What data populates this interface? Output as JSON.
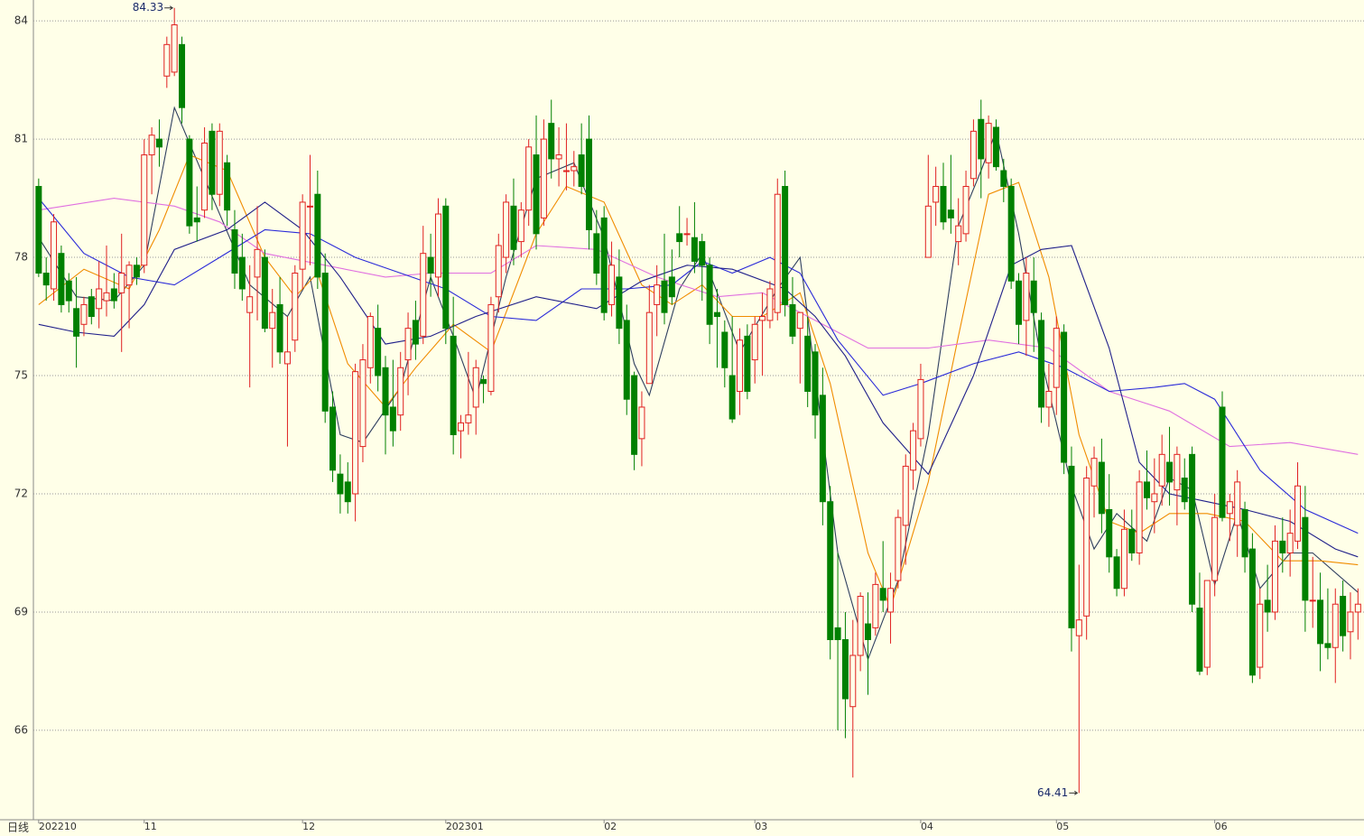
{
  "chart_data": {
    "type": "candlestick",
    "period": "日线",
    "up_color": "#e02020",
    "down_color": "#008000",
    "grid": true,
    "ylim": [
      63.73,
      84.53
    ],
    "yticks": [
      66,
      69,
      72,
      75,
      78,
      81,
      84
    ],
    "xlim": [
      -0.7,
      175.8
    ],
    "xticks": [
      {
        "value": 0,
        "label": "202210"
      },
      {
        "value": 14,
        "label": "11"
      },
      {
        "value": 35,
        "label": "12"
      },
      {
        "value": 54,
        "label": "202301"
      },
      {
        "value": 75,
        "label": "02"
      },
      {
        "value": 95,
        "label": "03"
      },
      {
        "value": 117,
        "label": "04"
      },
      {
        "value": 135,
        "label": "05"
      },
      {
        "value": 156,
        "label": "06"
      }
    ],
    "ohlc": [
      [
        79.8,
        80.0,
        77.5,
        77.6
      ],
      [
        77.6,
        78.0,
        76.9,
        77.3
      ],
      [
        77.2,
        79.1,
        76.9,
        78.9
      ],
      [
        78.1,
        78.3,
        76.6,
        76.8
      ],
      [
        77.4,
        77.6,
        76.6,
        76.9
      ],
      [
        76.7,
        77.5,
        75.2,
        76.0
      ],
      [
        76.3,
        77.0,
        76.0,
        76.8
      ],
      [
        77.0,
        77.2,
        76.3,
        76.5
      ],
      [
        76.7,
        77.9,
        76.2,
        77.2
      ],
      [
        76.9,
        78.3,
        76.5,
        77.1
      ],
      [
        77.2,
        77.6,
        76.7,
        76.9
      ],
      [
        77.1,
        78.6,
        75.6,
        77.6
      ],
      [
        77.3,
        77.9,
        76.2,
        77.8
      ],
      [
        77.8,
        78.0,
        77.3,
        77.5
      ],
      [
        77.8,
        81.0,
        77.6,
        80.6
      ],
      [
        80.6,
        81.3,
        79.6,
        81.1
      ],
      [
        81.0,
        81.5,
        80.3,
        80.8
      ],
      [
        82.6,
        83.6,
        82.3,
        83.4
      ],
      [
        82.7,
        84.33,
        82.6,
        83.9
      ],
      [
        83.4,
        83.6,
        81.4,
        81.8
      ],
      [
        81.0,
        81.1,
        78.6,
        78.8
      ],
      [
        79.0,
        79.8,
        78.4,
        78.9
      ],
      [
        79.2,
        81.3,
        79.0,
        80.9
      ],
      [
        81.2,
        81.4,
        79.2,
        79.6
      ],
      [
        79.6,
        81.4,
        79.3,
        81.2
      ],
      [
        80.4,
        80.6,
        78.8,
        79.2
      ],
      [
        78.7,
        79.2,
        77.2,
        77.6
      ],
      [
        78.0,
        78.6,
        76.9,
        77.2
      ],
      [
        76.6,
        77.8,
        74.7,
        77.0
      ],
      [
        77.5,
        79.3,
        76.4,
        78.2
      ],
      [
        78.0,
        78.2,
        76.1,
        76.2
      ],
      [
        76.2,
        77.2,
        75.2,
        76.6
      ],
      [
        76.8,
        77.5,
        75.3,
        75.6
      ],
      [
        75.3,
        76.5,
        73.2,
        75.6
      ],
      [
        75.9,
        77.8,
        75.6,
        77.6
      ],
      [
        77.7,
        79.6,
        77.2,
        79.4
      ],
      [
        79.3,
        80.6,
        77.8,
        79.3
      ],
      [
        79.6,
        80.2,
        77.2,
        77.5
      ],
      [
        77.6,
        78.1,
        73.8,
        74.1
      ],
      [
        74.2,
        74.6,
        72.3,
        72.6
      ],
      [
        72.5,
        73.0,
        71.5,
        72.0
      ],
      [
        72.3,
        72.8,
        71.5,
        71.8
      ],
      [
        72.0,
        75.3,
        71.3,
        75.1
      ],
      [
        73.2,
        75.8,
        72.8,
        75.4
      ],
      [
        75.2,
        76.6,
        74.8,
        76.5
      ],
      [
        76.2,
        76.8,
        74.6,
        75.0
      ],
      [
        75.2,
        75.5,
        73.0,
        74.0
      ],
      [
        74.2,
        75.4,
        73.2,
        73.6
      ],
      [
        74.0,
        75.6,
        73.6,
        75.2
      ],
      [
        75.4,
        76.6,
        74.5,
        76.2
      ],
      [
        76.4,
        76.9,
        75.4,
        75.8
      ],
      [
        76.0,
        78.8,
        75.8,
        78.1
      ],
      [
        78.0,
        78.6,
        77.0,
        77.6
      ],
      [
        77.5,
        79.5,
        77.0,
        79.1
      ],
      [
        79.3,
        79.5,
        75.8,
        76.2
      ],
      [
        76.0,
        77.0,
        73.0,
        73.5
      ],
      [
        73.6,
        74.0,
        72.9,
        73.8
      ],
      [
        73.8,
        75.6,
        73.5,
        74.0
      ],
      [
        74.2,
        75.4,
        73.5,
        75.2
      ],
      [
        74.9,
        75.0,
        74.3,
        74.8
      ],
      [
        74.6,
        77.0,
        74.5,
        76.8
      ],
      [
        77.0,
        78.6,
        76.6,
        78.3
      ],
      [
        78.0,
        79.6,
        77.6,
        79.4
      ],
      [
        79.3,
        80.0,
        77.8,
        78.2
      ],
      [
        78.4,
        79.4,
        78.0,
        79.2
      ],
      [
        79.2,
        81.0,
        78.8,
        80.8
      ],
      [
        80.6,
        81.6,
        78.2,
        78.6
      ],
      [
        79.0,
        81.5,
        78.8,
        81.0
      ],
      [
        81.4,
        82.0,
        80.0,
        80.5
      ],
      [
        80.5,
        81.3,
        79.8,
        80.6
      ],
      [
        80.2,
        81.4,
        79.7,
        80.2
      ],
      [
        80.2,
        80.7,
        79.8,
        80.3
      ],
      [
        80.6,
        81.4,
        79.6,
        79.8
      ],
      [
        81.0,
        81.6,
        78.2,
        78.7
      ],
      [
        78.6,
        79.2,
        77.3,
        77.6
      ],
      [
        79.0,
        79.3,
        76.4,
        76.6
      ],
      [
        76.8,
        78.4,
        76.5,
        77.8
      ],
      [
        77.5,
        78.2,
        75.8,
        76.2
      ],
      [
        76.4,
        76.8,
        74.0,
        74.4
      ],
      [
        75.0,
        75.1,
        72.6,
        73.0
      ],
      [
        73.4,
        74.6,
        72.7,
        74.2
      ],
      [
        74.8,
        77.3,
        74.8,
        76.6
      ],
      [
        76.8,
        77.8,
        76.0,
        77.3
      ],
      [
        77.4,
        78.6,
        76.3,
        76.6
      ],
      [
        77.5,
        78.2,
        76.8,
        77.0
      ],
      [
        78.6,
        79.3,
        78.0,
        78.4
      ],
      [
        78.6,
        79.0,
        78.3,
        78.6
      ],
      [
        78.5,
        79.4,
        77.6,
        77.9
      ],
      [
        78.4,
        78.6,
        76.9,
        77.8
      ],
      [
        77.8,
        78.0,
        75.8,
        76.3
      ],
      [
        76.6,
        77.2,
        75.2,
        76.5
      ],
      [
        76.1,
        76.4,
        74.7,
        75.2
      ],
      [
        75.0,
        76.5,
        73.8,
        73.9
      ],
      [
        74.6,
        76.2,
        74.0,
        75.9
      ],
      [
        76.0,
        76.3,
        74.4,
        74.6
      ],
      [
        75.4,
        76.5,
        74.8,
        76.3
      ],
      [
        76.4,
        77.1,
        75.0,
        76.5
      ],
      [
        76.4,
        77.4,
        76.2,
        77.2
      ],
      [
        76.6,
        80.0,
        76.4,
        79.6
      ],
      [
        79.8,
        80.2,
        76.5,
        76.8
      ],
      [
        76.8,
        77.5,
        75.8,
        76.0
      ],
      [
        76.2,
        76.6,
        74.8,
        76.6
      ],
      [
        76.0,
        76.5,
        74.2,
        74.6
      ],
      [
        75.6,
        75.8,
        73.4,
        74.0
      ],
      [
        74.5,
        75.2,
        71.2,
        71.8
      ],
      [
        71.8,
        72.2,
        67.8,
        68.3
      ],
      [
        68.6,
        70.5,
        66.0,
        68.3
      ],
      [
        68.3,
        69.0,
        65.8,
        66.8
      ],
      [
        66.6,
        68.8,
        64.8,
        67.9
      ],
      [
        67.9,
        69.5,
        67.5,
        69.4
      ],
      [
        68.7,
        69.5,
        66.9,
        68.3
      ],
      [
        68.6,
        70.0,
        68.4,
        69.7
      ],
      [
        69.6,
        70.8,
        69.0,
        69.3
      ],
      [
        69.0,
        70.0,
        68.2,
        69.6
      ],
      [
        69.8,
        71.6,
        69.6,
        71.4
      ],
      [
        71.2,
        73.0,
        70.2,
        72.7
      ],
      [
        72.6,
        73.8,
        72.1,
        73.6
      ],
      [
        73.4,
        75.3,
        73.2,
        74.9
      ],
      [
        78.0,
        80.6,
        78.0,
        79.3
      ],
      [
        79.4,
        80.3,
        78.8,
        79.8
      ],
      [
        79.8,
        80.4,
        78.7,
        78.9
      ],
      [
        79.2,
        80.6,
        78.6,
        79.0
      ],
      [
        78.4,
        79.5,
        77.8,
        78.8
      ],
      [
        78.6,
        80.2,
        78.4,
        79.8
      ],
      [
        80.0,
        81.5,
        79.8,
        81.2
      ],
      [
        81.5,
        82.0,
        79.5,
        80.5
      ],
      [
        80.4,
        81.6,
        80.0,
        81.4
      ],
      [
        81.3,
        81.5,
        80.2,
        80.3
      ],
      [
        80.2,
        80.5,
        79.4,
        79.8
      ],
      [
        79.8,
        80.0,
        77.2,
        77.4
      ],
      [
        77.4,
        77.6,
        75.8,
        76.3
      ],
      [
        76.4,
        78.0,
        75.5,
        77.6
      ],
      [
        77.4,
        78.0,
        75.6,
        76.6
      ],
      [
        76.4,
        76.6,
        73.8,
        74.2
      ],
      [
        74.2,
        75.3,
        73.7,
        74.6
      ],
      [
        74.7,
        76.5,
        74.0,
        76.2
      ],
      [
        76.1,
        76.3,
        72.5,
        72.8
      ],
      [
        72.7,
        73.2,
        68.0,
        68.6
      ],
      [
        68.4,
        70.2,
        64.41,
        68.8
      ],
      [
        68.9,
        72.7,
        68.3,
        72.4
      ],
      [
        72.2,
        73.2,
        71.4,
        72.9
      ],
      [
        72.8,
        73.4,
        71.0,
        71.5
      ],
      [
        71.6,
        72.5,
        70.0,
        70.4
      ],
      [
        70.4,
        70.6,
        69.4,
        69.6
      ],
      [
        69.6,
        71.6,
        69.4,
        71.1
      ],
      [
        71.1,
        71.6,
        70.3,
        70.5
      ],
      [
        70.5,
        72.6,
        70.2,
        72.3
      ],
      [
        72.3,
        73.1,
        71.6,
        71.9
      ],
      [
        71.8,
        72.9,
        71.0,
        72.0
      ],
      [
        72.2,
        73.5,
        71.7,
        73.0
      ],
      [
        72.8,
        73.7,
        71.7,
        72.3
      ],
      [
        72.1,
        73.2,
        71.2,
        73.0
      ],
      [
        72.4,
        72.9,
        71.6,
        71.8
      ],
      [
        73.0,
        73.2,
        69.0,
        69.2
      ],
      [
        69.1,
        70.0,
        67.4,
        67.5
      ],
      [
        67.6,
        69.8,
        67.4,
        69.8
      ],
      [
        69.8,
        72.0,
        69.4,
        71.4
      ],
      [
        74.2,
        74.6,
        71.3,
        71.4
      ],
      [
        71.5,
        72.0,
        70.8,
        71.8
      ],
      [
        71.2,
        72.6,
        70.4,
        72.3
      ],
      [
        71.6,
        71.8,
        70.0,
        70.4
      ],
      [
        70.6,
        71.0,
        67.2,
        67.4
      ],
      [
        67.6,
        69.6,
        67.3,
        69.2
      ],
      [
        69.3,
        70.2,
        68.5,
        69.0
      ],
      [
        69.0,
        71.2,
        68.8,
        70.8
      ],
      [
        70.8,
        71.4,
        70.0,
        70.5
      ],
      [
        70.5,
        71.6,
        69.9,
        71.0
      ],
      [
        70.8,
        72.8,
        70.6,
        72.2
      ],
      [
        71.4,
        72.2,
        68.5,
        69.3
      ],
      [
        69.3,
        70.4,
        68.6,
        69.3
      ],
      [
        69.3,
        70.0,
        67.5,
        68.2
      ],
      [
        68.2,
        69.6,
        67.8,
        68.1
      ],
      [
        68.1,
        69.6,
        67.2,
        69.2
      ],
      [
        69.4,
        69.8,
        68.0,
        68.4
      ],
      [
        68.5,
        69.5,
        67.8,
        69.0
      ],
      [
        69.0,
        69.6,
        68.3,
        69.2
      ]
    ],
    "series": [
      {
        "color": "#2f3f5f",
        "x": [
          0,
          5,
          10,
          14,
          18,
          22,
          28,
          33,
          36,
          40,
          43,
          48,
          52,
          55,
          58,
          62,
          66,
          71,
          75,
          79,
          81,
          85,
          88,
          93,
          98,
          101,
          106,
          110,
          114,
          118,
          122,
          125,
          127,
          130,
          133,
          137,
          140,
          143,
          147,
          150,
          153,
          156,
          159,
          162,
          166,
          169,
          175
        ],
        "values": [
          78.5,
          77.0,
          76.9,
          77.8,
          81.8,
          80.0,
          77.3,
          76.5,
          77.5,
          73.5,
          73.3,
          74.7,
          77.5,
          76.0,
          74.4,
          77.5,
          80.0,
          80.4,
          78.5,
          75.3,
          74.5,
          77.2,
          78.1,
          75.6,
          77.2,
          78.0,
          70.5,
          67.8,
          69.8,
          73.5,
          78.8,
          80.2,
          81.2,
          78.6,
          75.4,
          72.2,
          70.6,
          71.5,
          70.8,
          72.4,
          72.1,
          69.7,
          71.5,
          69.6,
          70.5,
          70.5,
          69.5
        ]
      },
      {
        "color": "#f08c00",
        "x": [
          0,
          6,
          12,
          16,
          20,
          25,
          30,
          34,
          37,
          41,
          46,
          50,
          55,
          60,
          66,
          70,
          75,
          80,
          84,
          88,
          92,
          96,
          101,
          105,
          110,
          113,
          118,
          122,
          126,
          130,
          134,
          138,
          142,
          146,
          150,
          155,
          160,
          165,
          170,
          175
        ],
        "values": [
          76.8,
          77.7,
          77.2,
          78.7,
          80.6,
          80.2,
          78.0,
          77.0,
          77.6,
          75.3,
          74.2,
          75.2,
          76.3,
          75.6,
          78.6,
          79.8,
          79.4,
          77.3,
          76.8,
          77.3,
          76.5,
          76.5,
          77.1,
          74.8,
          70.5,
          69.1,
          72.3,
          76.0,
          79.6,
          79.9,
          77.5,
          73.5,
          71.3,
          71.0,
          71.5,
          71.5,
          71.3,
          70.3,
          70.3,
          70.2
        ]
      },
      {
        "color": "#e070e0",
        "x": [
          0,
          10,
          18,
          24,
          30,
          38,
          46,
          52,
          60,
          66,
          74,
          82,
          90,
          96,
          102,
          110,
          118,
          126,
          134,
          142,
          150,
          158,
          166,
          175
        ],
        "values": [
          79.2,
          79.5,
          79.3,
          78.9,
          78.1,
          77.8,
          77.5,
          77.6,
          77.6,
          78.3,
          78.2,
          77.5,
          77.0,
          77.1,
          76.5,
          75.7,
          75.7,
          75.9,
          75.7,
          74.6,
          74.1,
          73.2,
          73.3,
          73.0
        ]
      },
      {
        "color": "#2a2ad8",
        "x": [
          0,
          6,
          12,
          18,
          24,
          30,
          36,
          42,
          48,
          54,
          60,
          66,
          72,
          78,
          84,
          88,
          92,
          97,
          101,
          106,
          112,
          117,
          124,
          130,
          136,
          142,
          148,
          152,
          156,
          162,
          168,
          175
        ],
        "values": [
          79.5,
          78.1,
          77.5,
          77.3,
          78.0,
          78.7,
          78.6,
          78.0,
          77.6,
          77.2,
          76.5,
          76.4,
          77.2,
          77.2,
          77.3,
          77.9,
          77.6,
          78.0,
          77.6,
          75.9,
          74.5,
          74.8,
          75.3,
          75.6,
          75.2,
          74.6,
          74.7,
          74.8,
          74.4,
          72.6,
          71.6,
          71.0
        ]
      },
      {
        "color": "#20208a",
        "x": [
          0,
          5,
          10,
          14,
          18,
          25,
          30,
          35,
          40,
          46,
          52,
          58,
          66,
          74,
          80,
          86,
          92,
          99,
          103,
          107,
          112,
          118,
          124,
          129,
          133,
          137,
          142,
          146,
          150,
          155,
          160,
          166,
          172,
          175
        ],
        "values": [
          76.3,
          76.1,
          76.0,
          76.8,
          78.2,
          78.7,
          79.4,
          78.7,
          77.5,
          75.8,
          76.0,
          76.5,
          77.0,
          76.7,
          77.4,
          77.8,
          77.7,
          77.2,
          76.5,
          75.5,
          73.8,
          72.5,
          75.0,
          77.8,
          78.2,
          78.3,
          75.7,
          72.8,
          72.0,
          71.8,
          71.6,
          71.3,
          70.6,
          70.4
        ]
      }
    ]
  }
}
